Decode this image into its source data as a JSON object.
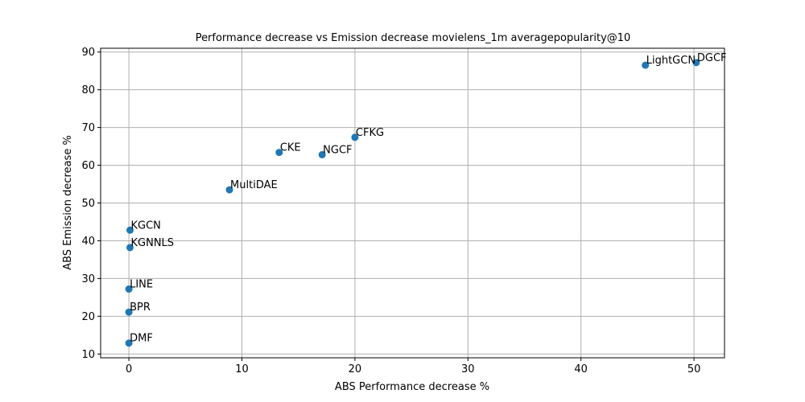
{
  "chart_data": {
    "type": "scatter",
    "title": "Performance decrease vs Emission decrease movielens_1m averagepopularity@10",
    "xlabel": "ABS Performance decrease %",
    "ylabel": "ABS Emission decrease %",
    "xlim": [
      -2.5,
      52.7
    ],
    "ylim": [
      9.0,
      91.0
    ],
    "xticks": [
      0,
      10,
      20,
      30,
      40,
      50
    ],
    "yticks": [
      10,
      20,
      30,
      40,
      50,
      60,
      70,
      80,
      90
    ],
    "grid": true,
    "marker_color": "#1f77b4",
    "points": [
      {
        "label": "DGCF",
        "x": 50.2,
        "y": 87.2
      },
      {
        "label": "LightGCN",
        "x": 45.7,
        "y": 86.5
      },
      {
        "label": "CFKG",
        "x": 20.0,
        "y": 67.4
      },
      {
        "label": "CKE",
        "x": 13.3,
        "y": 63.4
      },
      {
        "label": "NGCF",
        "x": 17.1,
        "y": 62.8
      },
      {
        "label": "MultiDAE",
        "x": 8.9,
        "y": 53.5
      },
      {
        "label": "KGCN",
        "x": 0.1,
        "y": 42.8
      },
      {
        "label": "KGNNLS",
        "x": 0.1,
        "y": 38.2
      },
      {
        "label": "LINE",
        "x": 0.0,
        "y": 27.2
      },
      {
        "label": "BPR",
        "x": 0.0,
        "y": 21.1
      },
      {
        "label": "DMF",
        "x": 0.0,
        "y": 12.9
      }
    ]
  }
}
